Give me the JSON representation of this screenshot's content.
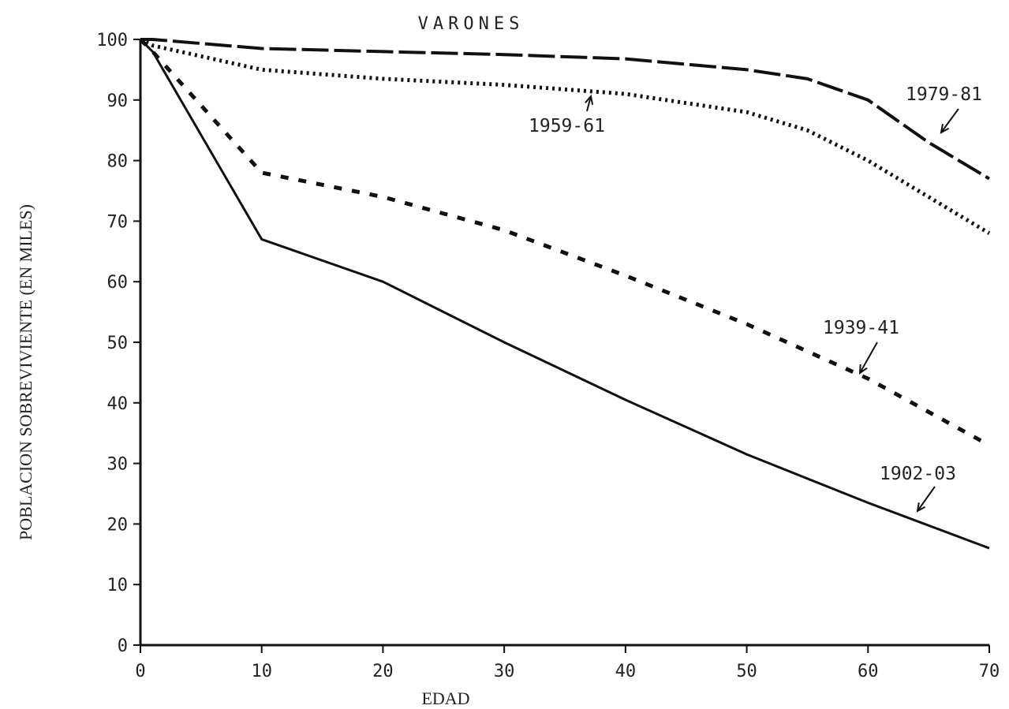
{
  "chart_data": {
    "type": "line",
    "title": "VARONES",
    "xlabel": "EDAD",
    "ylabel": "POBLACION SOBREVIVIENTE (EN MILES)",
    "xlim": [
      0,
      70
    ],
    "ylim": [
      0,
      100
    ],
    "x_ticks": [
      "0",
      "10",
      "20",
      "30",
      "40",
      "50",
      "60",
      "70"
    ],
    "y_ticks": [
      "0",
      "10",
      "20",
      "30",
      "40",
      "50",
      "60",
      "70",
      "80",
      "90",
      "100"
    ],
    "grid": false,
    "legend": "inline labels with arrows",
    "series": [
      {
        "name": "1979-81",
        "style": "long-dash",
        "x": [
          0,
          1,
          10,
          20,
          30,
          40,
          50,
          55,
          60,
          65,
          70
        ],
        "y": [
          100,
          100,
          98.5,
          98,
          97.5,
          96.8,
          95,
          93.5,
          90,
          83,
          77
        ]
      },
      {
        "name": "1959-61",
        "style": "dotted",
        "x": [
          0,
          1,
          10,
          20,
          30,
          40,
          50,
          55,
          60,
          65,
          70
        ],
        "y": [
          100,
          99,
          95,
          93.5,
          92.5,
          91,
          88,
          85,
          80,
          74,
          68
        ]
      },
      {
        "name": "1939-41",
        "style": "short-dash",
        "x": [
          0,
          1,
          10,
          15,
          20,
          30,
          40,
          50,
          60,
          70
        ],
        "y": [
          100,
          98,
          78,
          76,
          74,
          68.5,
          61,
          53,
          44,
          33
        ]
      },
      {
        "name": "1902-03",
        "style": "solid",
        "x": [
          0,
          1,
          10,
          20,
          25,
          30,
          40,
          50,
          60,
          70
        ],
        "y": [
          100,
          98,
          67,
          60,
          55,
          50,
          40.5,
          31.5,
          23.5,
          16
        ]
      }
    ]
  },
  "colors": {
    "ink": "#111111"
  }
}
